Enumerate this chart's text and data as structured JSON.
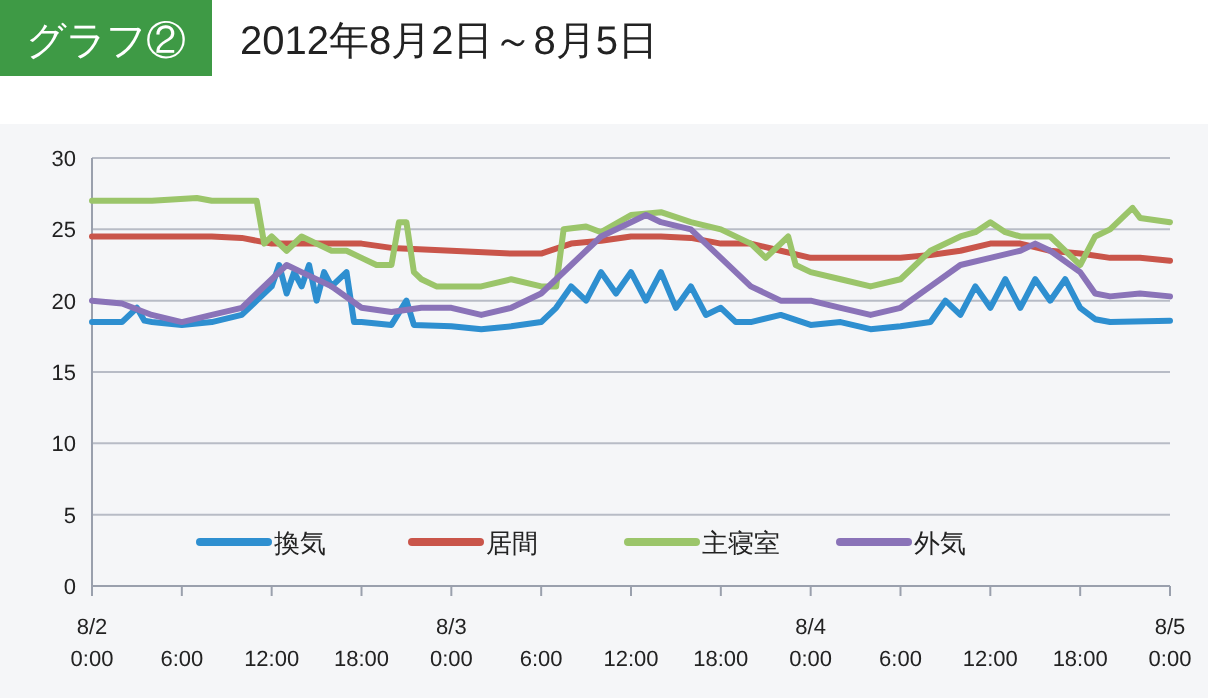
{
  "chart_data": {
    "type": "line",
    "title": "グラフ②",
    "subtitle": "2012年8月2日～8月5日",
    "xlim": [
      "2012-08-02T00:00",
      "2012-08-05T00:00"
    ],
    "ylim": [
      0,
      30
    ],
    "yticks": [
      0,
      5,
      10,
      15,
      20,
      25,
      30
    ],
    "xticks": [
      {
        "value": "2012-08-02T00:00",
        "label": "8/2\n0:00"
      },
      {
        "value": "2012-08-02T06:00",
        "label": "6:00"
      },
      {
        "value": "2012-08-02T12:00",
        "label": "12:00"
      },
      {
        "value": "2012-08-02T18:00",
        "label": "18:00"
      },
      {
        "value": "2012-08-03T00:00",
        "label": "8/3\n0:00"
      },
      {
        "value": "2012-08-03T06:00",
        "label": "6:00"
      },
      {
        "value": "2012-08-03T12:00",
        "label": "12:00"
      },
      {
        "value": "2012-08-03T18:00",
        "label": "18:00"
      },
      {
        "value": "2012-08-04T00:00",
        "label": "8/4\n0:00"
      },
      {
        "value": "2012-08-04T06:00",
        "label": "6:00"
      },
      {
        "value": "2012-08-04T12:00",
        "label": "12:00"
      },
      {
        "value": "2012-08-04T18:00",
        "label": "18:00"
      },
      {
        "value": "2012-08-05T00:00",
        "label": "8/5\n0:00"
      }
    ],
    "grid": "y",
    "legend": "bottom",
    "marker": "none",
    "line_style": "solid",
    "series": [
      {
        "name": "換気",
        "color": "#2e8fd0",
        "x": [
          "2012-08-02T00:00",
          "2012-08-02T02:00",
          "2012-08-02T03:00",
          "2012-08-02T03:30",
          "2012-08-02T04:00",
          "2012-08-02T06:00",
          "2012-08-02T08:00",
          "2012-08-02T10:00",
          "2012-08-02T11:00",
          "2012-08-02T12:00",
          "2012-08-02T12:30",
          "2012-08-02T13:00",
          "2012-08-02T13:30",
          "2012-08-02T14:00",
          "2012-08-02T14:30",
          "2012-08-02T15:00",
          "2012-08-02T15:30",
          "2012-08-02T16:00",
          "2012-08-02T17:00",
          "2012-08-02T17:30",
          "2012-08-02T18:00",
          "2012-08-02T20:00",
          "2012-08-02T21:00",
          "2012-08-02T21:30",
          "2012-08-03T00:00",
          "2012-08-03T02:00",
          "2012-08-03T04:00",
          "2012-08-03T06:00",
          "2012-08-03T07:00",
          "2012-08-03T08:00",
          "2012-08-03T09:00",
          "2012-08-03T10:00",
          "2012-08-03T11:00",
          "2012-08-03T12:00",
          "2012-08-03T13:00",
          "2012-08-03T14:00",
          "2012-08-03T15:00",
          "2012-08-03T16:00",
          "2012-08-03T17:00",
          "2012-08-03T18:00",
          "2012-08-03T19:00",
          "2012-08-03T20:00",
          "2012-08-03T22:00",
          "2012-08-04T00:00",
          "2012-08-04T02:00",
          "2012-08-04T04:00",
          "2012-08-04T06:00",
          "2012-08-04T08:00",
          "2012-08-04T09:00",
          "2012-08-04T10:00",
          "2012-08-04T11:00",
          "2012-08-04T12:00",
          "2012-08-04T13:00",
          "2012-08-04T14:00",
          "2012-08-04T15:00",
          "2012-08-04T16:00",
          "2012-08-04T17:00",
          "2012-08-04T18:00",
          "2012-08-04T19:00",
          "2012-08-04T20:00",
          "2012-08-05T00:00"
        ],
        "values": [
          18.5,
          18.5,
          19.5,
          18.6,
          18.5,
          18.3,
          18.5,
          19,
          20,
          21,
          22.5,
          20.5,
          22,
          21,
          22.5,
          20,
          22,
          21,
          22,
          18.5,
          18.5,
          18.3,
          20,
          18.3,
          18.2,
          18,
          18.2,
          18.5,
          19.5,
          21,
          20,
          22,
          20.5,
          22,
          20,
          22,
          19.5,
          21,
          19,
          19.5,
          18.5,
          18.5,
          19,
          18.3,
          18.5,
          18,
          18.2,
          18.5,
          20,
          19,
          21,
          19.5,
          21.5,
          19.5,
          21.5,
          20,
          21.5,
          19.5,
          18.7,
          18.5,
          18.6
        ]
      },
      {
        "name": "居間",
        "color": "#c9554a",
        "x": [
          "2012-08-02T00:00",
          "2012-08-02T04:00",
          "2012-08-02T08:00",
          "2012-08-02T10:00",
          "2012-08-02T12:00",
          "2012-08-02T15:00",
          "2012-08-02T18:00",
          "2012-08-02T20:00",
          "2012-08-03T00:00",
          "2012-08-03T04:00",
          "2012-08-03T06:00",
          "2012-08-03T08:00",
          "2012-08-03T10:00",
          "2012-08-03T12:00",
          "2012-08-03T14:00",
          "2012-08-03T16:00",
          "2012-08-03T18:00",
          "2012-08-03T20:00",
          "2012-08-03T22:00",
          "2012-08-04T00:00",
          "2012-08-04T03:00",
          "2012-08-04T06:00",
          "2012-08-04T08:00",
          "2012-08-04T10:00",
          "2012-08-04T12:00",
          "2012-08-04T14:00",
          "2012-08-04T16:00",
          "2012-08-04T18:00",
          "2012-08-04T20:00",
          "2012-08-04T22:00",
          "2012-08-05T00:00"
        ],
        "values": [
          24.5,
          24.5,
          24.5,
          24.4,
          24,
          24,
          24,
          23.7,
          23.5,
          23.3,
          23.3,
          24,
          24.2,
          24.5,
          24.5,
          24.4,
          24,
          24,
          23.5,
          23,
          23,
          23,
          23.2,
          23.5,
          24,
          24,
          23.5,
          23.3,
          23,
          23,
          22.8
        ]
      },
      {
        "name": "主寝室",
        "color": "#9bc56a",
        "x": [
          "2012-08-02T00:00",
          "2012-08-02T04:00",
          "2012-08-02T07:00",
          "2012-08-02T08:00",
          "2012-08-02T11:00",
          "2012-08-02T11:30",
          "2012-08-02T12:00",
          "2012-08-02T13:00",
          "2012-08-02T14:00",
          "2012-08-02T15:00",
          "2012-08-02T16:00",
          "2012-08-02T17:00",
          "2012-08-02T18:00",
          "2012-08-02T19:00",
          "2012-08-02T20:00",
          "2012-08-02T20:30",
          "2012-08-02T21:00",
          "2012-08-02T21:30",
          "2012-08-02T22:00",
          "2012-08-02T23:00",
          "2012-08-03T00:00",
          "2012-08-03T02:00",
          "2012-08-03T04:00",
          "2012-08-03T06:00",
          "2012-08-03T07:00",
          "2012-08-03T07:30",
          "2012-08-03T09:00",
          "2012-08-03T10:00",
          "2012-08-03T12:00",
          "2012-08-03T14:00",
          "2012-08-03T16:00",
          "2012-08-03T18:00",
          "2012-08-03T20:00",
          "2012-08-03T21:00",
          "2012-08-03T22:30",
          "2012-08-03T23:00",
          "2012-08-04T00:00",
          "2012-08-04T02:00",
          "2012-08-04T04:00",
          "2012-08-04T06:00",
          "2012-08-04T08:00",
          "2012-08-04T10:00",
          "2012-08-04T11:00",
          "2012-08-04T12:00",
          "2012-08-04T13:00",
          "2012-08-04T14:00",
          "2012-08-04T16:00",
          "2012-08-04T18:00",
          "2012-08-04T19:00",
          "2012-08-04T20:00",
          "2012-08-04T21:30",
          "2012-08-04T22:00",
          "2012-08-05T00:00"
        ],
        "values": [
          27,
          27,
          27.2,
          27,
          27,
          24,
          24.5,
          23.5,
          24.5,
          24,
          23.5,
          23.5,
          23,
          22.5,
          22.5,
          25.5,
          25.5,
          22,
          21.5,
          21,
          21,
          21,
          21.5,
          21,
          21,
          25,
          25.2,
          24.8,
          26,
          26.2,
          25.5,
          25,
          24,
          23,
          24.5,
          22.5,
          22,
          21.5,
          21,
          21.5,
          23.5,
          24.5,
          24.8,
          25.5,
          24.8,
          24.5,
          24.5,
          22.5,
          24.5,
          25,
          26.5,
          25.8,
          25.5
        ]
      },
      {
        "name": "外気",
        "color": "#8a73b8",
        "x": [
          "2012-08-02T00:00",
          "2012-08-02T02:00",
          "2012-08-02T04:00",
          "2012-08-02T06:00",
          "2012-08-02T08:00",
          "2012-08-02T10:00",
          "2012-08-02T11:00",
          "2012-08-02T12:00",
          "2012-08-02T13:00",
          "2012-08-02T14:00",
          "2012-08-02T16:00",
          "2012-08-02T18:00",
          "2012-08-02T20:00",
          "2012-08-02T22:00",
          "2012-08-03T00:00",
          "2012-08-03T02:00",
          "2012-08-03T04:00",
          "2012-08-03T06:00",
          "2012-08-03T08:00",
          "2012-08-03T10:00",
          "2012-08-03T12:00",
          "2012-08-03T13:00",
          "2012-08-03T14:00",
          "2012-08-03T16:00",
          "2012-08-03T18:00",
          "2012-08-03T20:00",
          "2012-08-03T22:00",
          "2012-08-04T00:00",
          "2012-08-04T02:00",
          "2012-08-04T04:00",
          "2012-08-04T06:00",
          "2012-08-04T08:00",
          "2012-08-04T10:00",
          "2012-08-04T12:00",
          "2012-08-04T14:00",
          "2012-08-04T15:00",
          "2012-08-04T16:00",
          "2012-08-04T18:00",
          "2012-08-04T19:00",
          "2012-08-04T20:00",
          "2012-08-04T22:00",
          "2012-08-05T00:00"
        ],
        "values": [
          20,
          19.8,
          19,
          18.5,
          19,
          19.5,
          20.5,
          21.5,
          22.5,
          22,
          21,
          19.5,
          19.2,
          19.5,
          19.5,
          19,
          19.5,
          20.5,
          22.5,
          24.5,
          25.5,
          26,
          25.5,
          25,
          23,
          21,
          20,
          20,
          19.5,
          19,
          19.5,
          21,
          22.5,
          23,
          23.5,
          24,
          23.5,
          22,
          20.5,
          20.3,
          20.5,
          20.3
        ]
      }
    ]
  }
}
